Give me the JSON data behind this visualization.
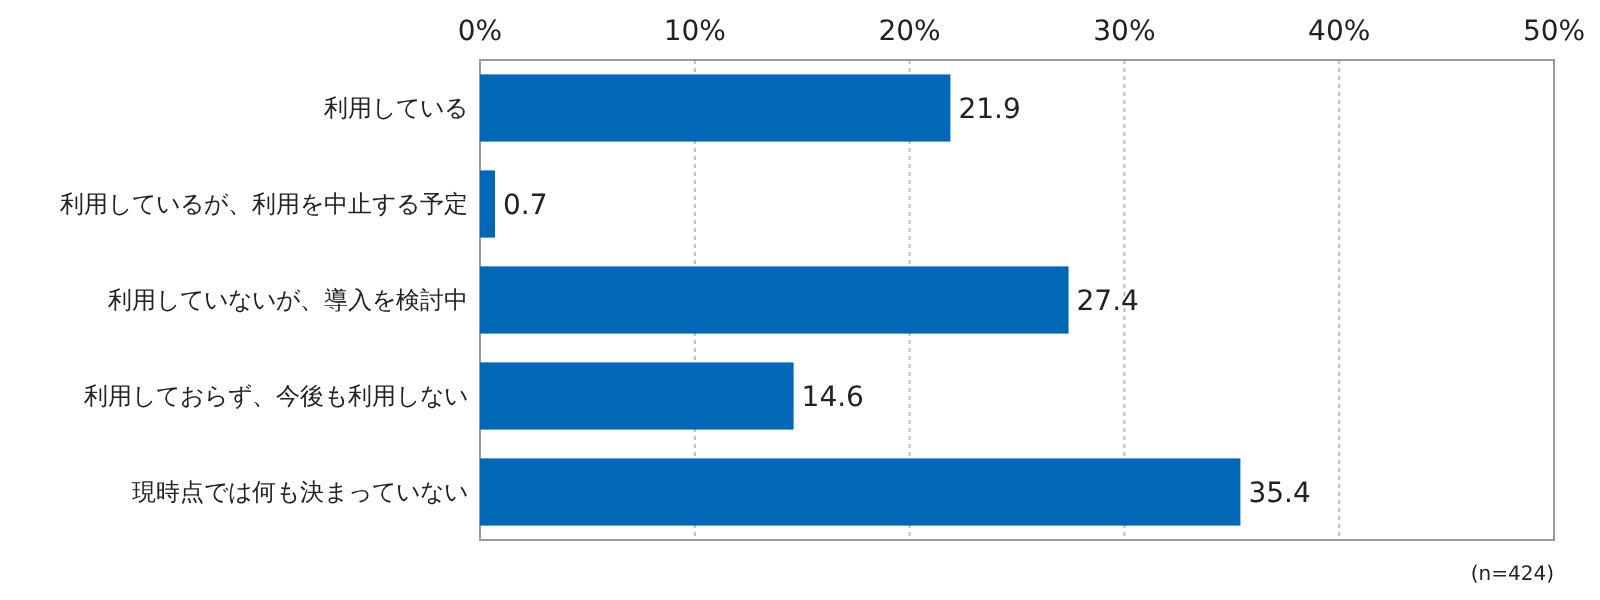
{
  "chart_data": {
    "type": "bar",
    "orientation": "horizontal",
    "categories": [
      "利用している",
      "利用しているが、利用を中止する予定",
      "利用していないが、導入を検討中",
      "利用しておらず、今後も利用しない",
      "現時点では何も決まっていない"
    ],
    "values": [
      21.9,
      0.7,
      27.4,
      14.6,
      35.4
    ],
    "color": "#0068b7",
    "xlim": [
      0,
      50
    ],
    "xticks": [
      {
        "value": 0,
        "label": "0%"
      },
      {
        "value": 10,
        "label": "10%"
      },
      {
        "value": 20,
        "label": "20%"
      },
      {
        "value": 30,
        "label": "30%"
      },
      {
        "value": 40,
        "label": "40%"
      },
      {
        "value": 50,
        "label": "50%"
      }
    ],
    "grid": "x",
    "data_labels": true,
    "annotations": [
      "(n=424)"
    ]
  }
}
